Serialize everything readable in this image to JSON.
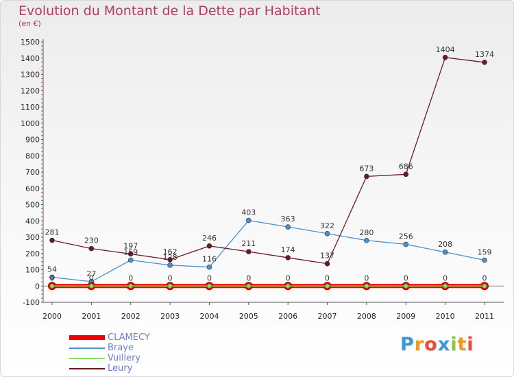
{
  "chart_data": {
    "type": "line",
    "title": "Evolution du Montant de la Dette par Habitant",
    "subtitle": "(en €)",
    "x": [
      "2000",
      "2001",
      "2002",
      "2003",
      "2004",
      "2005",
      "2006",
      "2007",
      "2008",
      "2009",
      "2010",
      "2011"
    ],
    "ylim": [
      -100,
      1500
    ],
    "yticks": [
      -100,
      0,
      100,
      200,
      300,
      400,
      500,
      600,
      700,
      800,
      900,
      1000,
      1100,
      1200,
      1300,
      1400,
      1500
    ],
    "grid": false,
    "legend_position": "bottom-left",
    "series": [
      {
        "name": "CLAMECY",
        "color": "#ee0000",
        "values": [
          0,
          0,
          0,
          0,
          0,
          0,
          0,
          0,
          0,
          0,
          0,
          0
        ]
      },
      {
        "name": "Braye",
        "color": "#4a90d0",
        "values": [
          54,
          27,
          159,
          128,
          116,
          403,
          363,
          322,
          280,
          256,
          208,
          159
        ]
      },
      {
        "name": "Vuillery",
        "color": "#88e060",
        "values": [
          0,
          0,
          0,
          0,
          0,
          0,
          0,
          0,
          0,
          0,
          0,
          0
        ]
      },
      {
        "name": "Leury",
        "color": "#6b1a22",
        "values": [
          281,
          230,
          197,
          162,
          246,
          211,
          174,
          137,
          673,
          686,
          1404,
          1374
        ]
      }
    ]
  },
  "logo": {
    "letters": [
      "P",
      "r",
      "o",
      "x",
      "i",
      "t",
      "i"
    ],
    "colors": [
      "#3a9ad9",
      "#f39c12",
      "#e74c3c",
      "#3a9ad9",
      "#8dc63f",
      "#f39c12",
      "#e74c3c"
    ]
  }
}
